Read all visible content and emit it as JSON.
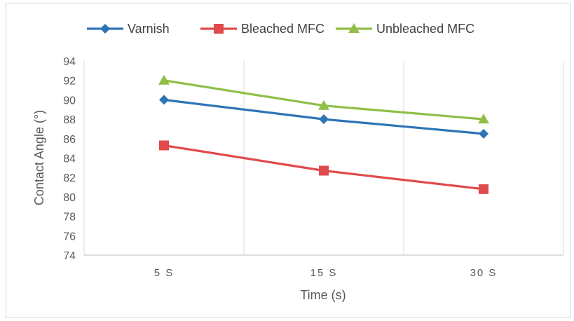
{
  "chart_data": {
    "type": "line",
    "categories": [
      "5 S",
      "15 S",
      "30 S"
    ],
    "series": [
      {
        "name": "Varnish",
        "values": [
          90.0,
          88.0,
          86.5
        ],
        "color": "#2e75b6",
        "marker": "diamond"
      },
      {
        "name": "Bleached MFC",
        "values": [
          85.3,
          82.7,
          80.8
        ],
        "color": "#e04a4a",
        "marker": "square"
      },
      {
        "name": "Unbleached MFC",
        "values": [
          92.0,
          89.4,
          88.0
        ],
        "color": "#8fbf47",
        "marker": "triangle"
      }
    ],
    "xlabel": "Time (s)",
    "ylabel": "Contact Angle (°)",
    "ylim": [
      74,
      94
    ],
    "yticks": [
      74,
      76,
      78,
      80,
      82,
      84,
      86,
      88,
      90,
      92,
      94
    ],
    "legend_position": "top",
    "grid": "vertical",
    "grid_color": "#d9d9d9",
    "axis_color": "#bfbfbf"
  }
}
